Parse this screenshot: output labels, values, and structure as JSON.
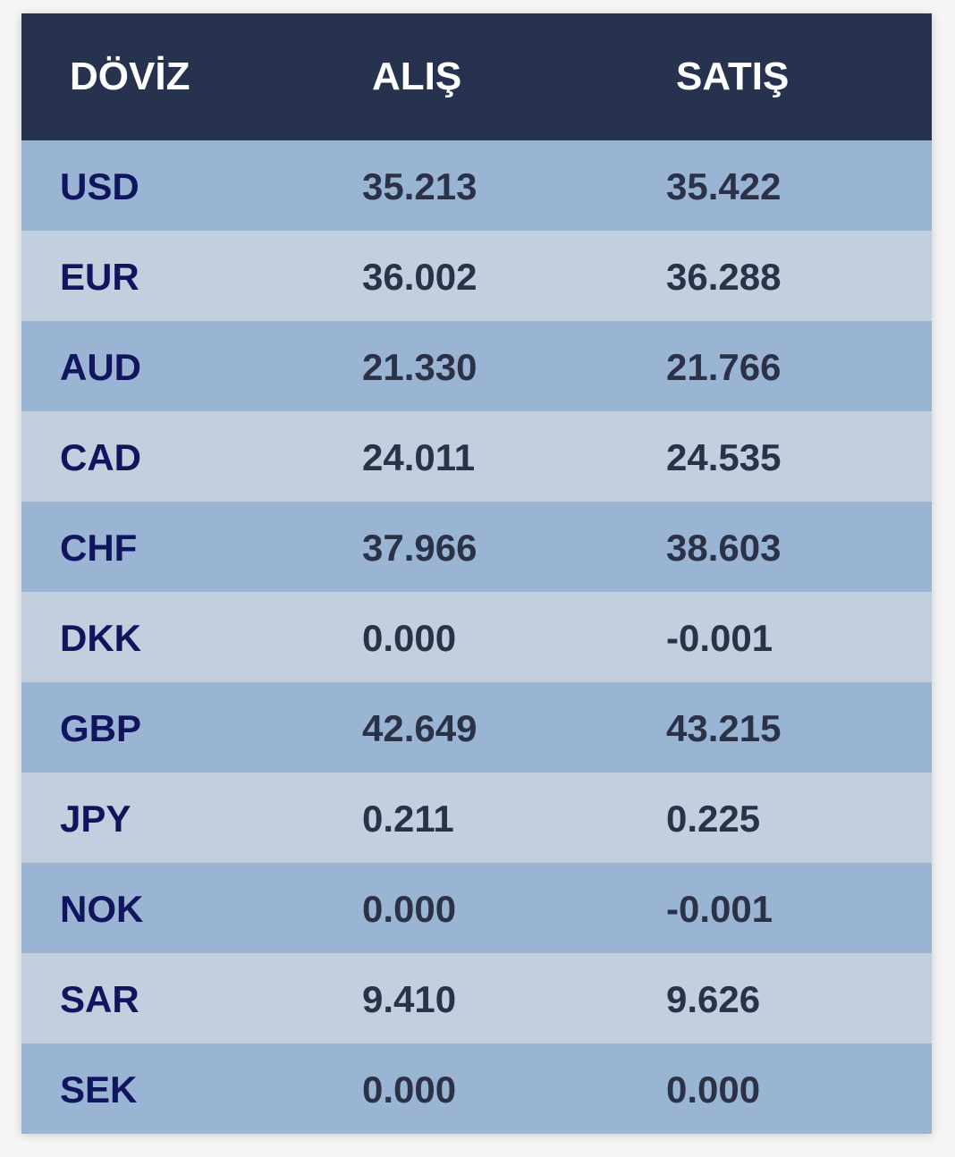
{
  "header": {
    "currency": "DÖVİZ",
    "buy": "ALIŞ",
    "sell": "SATIŞ"
  },
  "rows": [
    {
      "code": "USD",
      "buy": "35.213",
      "sell": "35.422"
    },
    {
      "code": "EUR",
      "buy": "36.002",
      "sell": "36.288"
    },
    {
      "code": "AUD",
      "buy": "21.330",
      "sell": "21.766"
    },
    {
      "code": "CAD",
      "buy": "24.011",
      "sell": "24.535"
    },
    {
      "code": "CHF",
      "buy": "37.966",
      "sell": "38.603"
    },
    {
      "code": "DKK",
      "buy": "0.000",
      "sell": "-0.001"
    },
    {
      "code": "GBP",
      "buy": "42.649",
      "sell": "43.215"
    },
    {
      "code": "JPY",
      "buy": "0.211",
      "sell": "0.225"
    },
    {
      "code": "NOK",
      "buy": "0.000",
      "sell": "-0.001"
    },
    {
      "code": "SAR",
      "buy": "9.410",
      "sell": "9.626"
    },
    {
      "code": "SEK",
      "buy": "0.000",
      "sell": "0.000"
    }
  ],
  "colors": {
    "header_bg": "#27334e",
    "row_dark": "#99b5d3",
    "row_light": "#c1cfde",
    "code_text": "#10155e",
    "value_text": "#2b3247"
  }
}
